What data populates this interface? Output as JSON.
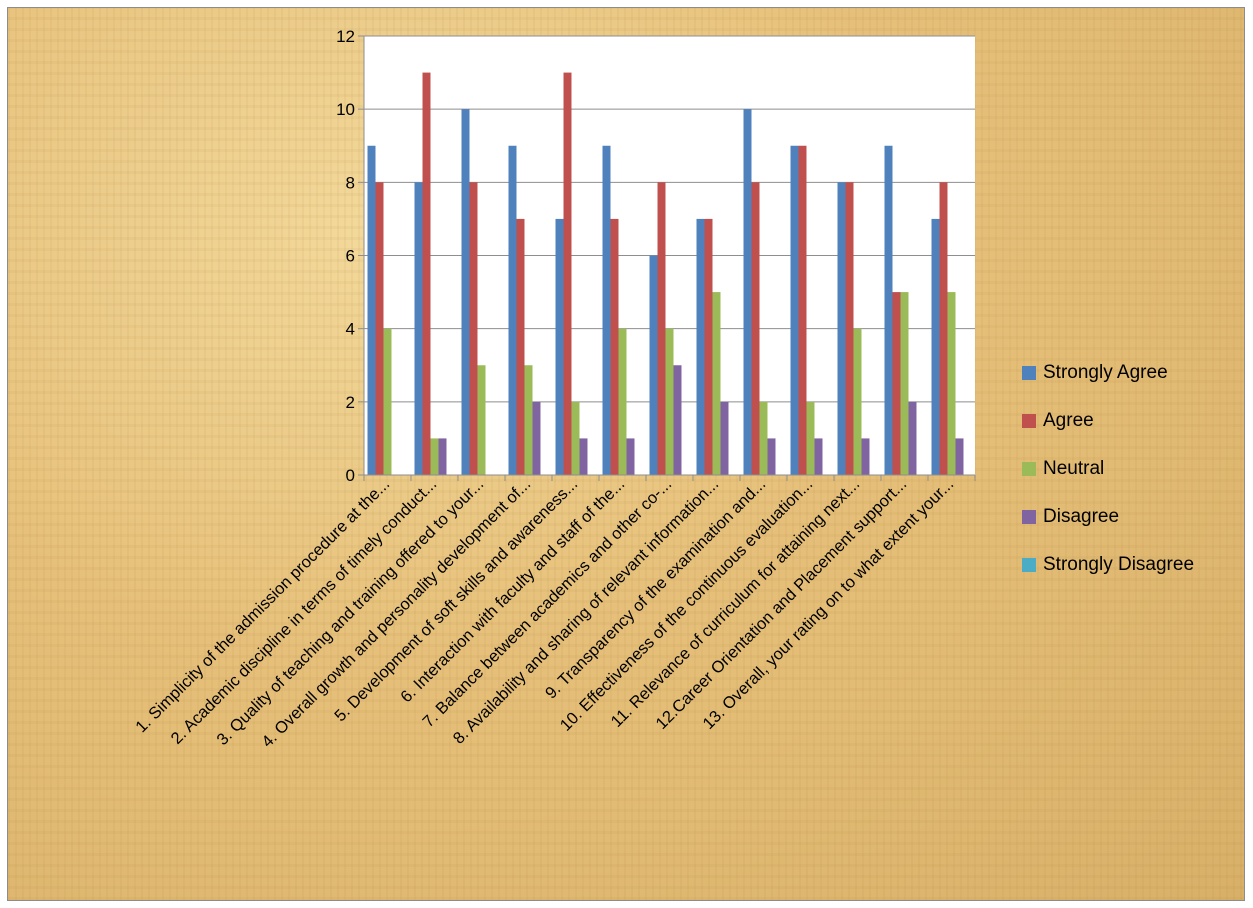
{
  "chart_data": {
    "type": "bar",
    "title": "",
    "xlabel": "",
    "ylabel": "",
    "ylim": [
      0,
      12
    ],
    "yticks": [
      0,
      2,
      4,
      6,
      8,
      10,
      12
    ],
    "grid": true,
    "legend_position": "right",
    "categories": [
      "1. Simplicity of the admission procedure  at the...",
      "2. Academic discipline in terms of timely conduct...",
      "3. Quality of teaching and training offered to your...",
      "4. Overall growth and personality development of...",
      "5. Development of soft skills and awareness...",
      "6. Interaction with faculty and staff of the...",
      "7. Balance between academics and other co-...",
      "8. Availability and sharing of relevant information...",
      "9. Transparency of the examination and...",
      "10. Effectiveness of the continuous evaluation...",
      "11. Relevance of curriculum for attaining next...",
      "12.Career Orientation and Placement support...",
      "13. Overall, your rating on to what extent your..."
    ],
    "series": [
      {
        "name": "Strongly Agree",
        "color": "#4f81bd",
        "values": [
          9,
          8,
          10,
          9,
          7,
          9,
          6,
          7,
          10,
          9,
          8,
          9,
          7
        ]
      },
      {
        "name": "Agree",
        "color": "#c0504d",
        "values": [
          8,
          11,
          8,
          7,
          11,
          7,
          8,
          7,
          8,
          9,
          8,
          5,
          8
        ]
      },
      {
        "name": "Neutral",
        "color": "#9bbb59",
        "values": [
          4,
          1,
          3,
          3,
          2,
          4,
          4,
          5,
          2,
          2,
          4,
          5,
          5
        ]
      },
      {
        "name": "Disagree",
        "color": "#8064a2",
        "values": [
          0,
          1,
          0,
          2,
          1,
          1,
          3,
          2,
          1,
          1,
          1,
          2,
          1
        ]
      },
      {
        "name": "Strongly Disagree",
        "color": "#4bacc6",
        "values": [
          0,
          0,
          0,
          0,
          0,
          0,
          0,
          0,
          0,
          0,
          0,
          0,
          0
        ]
      }
    ]
  }
}
